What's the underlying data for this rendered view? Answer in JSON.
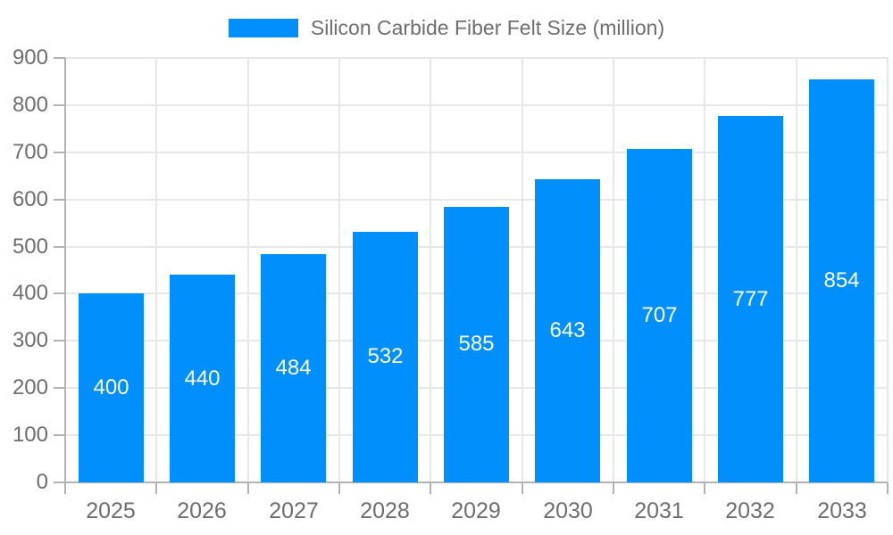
{
  "chart": {
    "legend": {
      "label": "Silicon Carbide Fiber Felt Size (million)"
    },
    "colors": {
      "bar": "#008FFB",
      "axis_text": "#6e6e6e",
      "axis_line": "#b3b3b3",
      "gridline": "#e8e8e8",
      "value_label": "#ffffff",
      "background": "#ffffff"
    }
  },
  "chart_data": {
    "type": "bar",
    "title": "Silicon Carbide Fiber Felt Size (million)",
    "categories": [
      "2025",
      "2026",
      "2027",
      "2028",
      "2029",
      "2030",
      "2031",
      "2032",
      "2033"
    ],
    "series": [
      {
        "name": "Silicon Carbide Fiber Felt Size (million)",
        "values": [
          400,
          440,
          484,
          532,
          585,
          643,
          707,
          777,
          854
        ]
      }
    ],
    "values": [
      400,
      440,
      484,
      532,
      585,
      643,
      707,
      777,
      854
    ],
    "xlabel": "",
    "ylabel": "",
    "ylim": [
      0,
      900
    ],
    "yticks": [
      0,
      100,
      200,
      300,
      400,
      500,
      600,
      700,
      800,
      900
    ],
    "grid": true,
    "legend_position": "top",
    "value_labels": "inside-center"
  }
}
